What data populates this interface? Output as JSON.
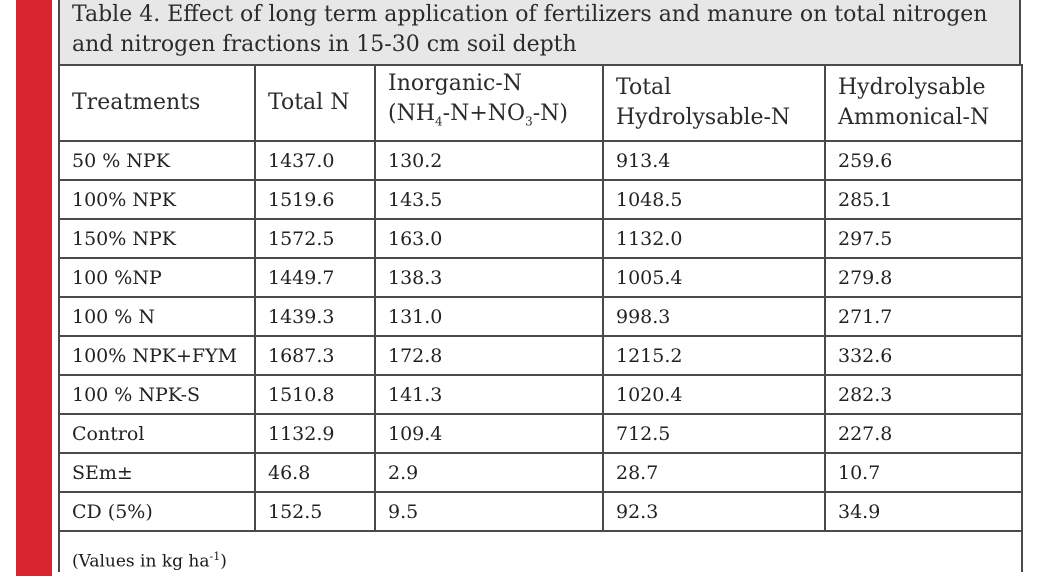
{
  "caption": {
    "line1": "Table 4. Effect of long term application of fertilizers and manure on total nitrogen",
    "line2": "and nitrogen fractions in 15-30 cm soil depth"
  },
  "headers": {
    "treatments": "Treatments",
    "total_n": "Total N",
    "inorganic": {
      "line1": "Inorganic-N",
      "p_open": "(NH",
      "sub1": "4",
      "mid": "-N+NO",
      "sub2": "3",
      "p_close": "-N)"
    },
    "hydrolysable": {
      "line1": "Total",
      "line2": "Hydrolysable-N"
    },
    "ammonical": {
      "line1": "Hydrolysable",
      "line2": "Ammonical-N"
    }
  },
  "rows": [
    [
      "50 % NPK",
      "1437.0",
      "130.2",
      "913.4",
      "259.6"
    ],
    [
      "100% NPK",
      "1519.6",
      "143.5",
      "1048.5",
      "285.1"
    ],
    [
      "150% NPK",
      "1572.5",
      "163.0",
      "1132.0",
      "297.5"
    ],
    [
      "100 %NP",
      "1449.7",
      "138.3",
      "1005.4",
      "279.8"
    ],
    [
      "100 % N",
      "1439.3",
      "131.0",
      "998.3",
      "271.7"
    ],
    [
      "100% NPK+FYM",
      "1687.3",
      "172.8",
      "1215.2",
      "332.6"
    ],
    [
      "100 % NPK-S",
      "1510.8",
      "141.3",
      "1020.4",
      "282.3"
    ],
    [
      "Control",
      "1132.9",
      "109.4",
      "712.5",
      "227.8"
    ],
    [
      "SEm±",
      "46.8",
      "2.9",
      "28.7",
      "10.7"
    ],
    [
      "CD (5%)",
      "152.5",
      "9.5",
      "92.3",
      "34.9"
    ]
  ],
  "footnote": {
    "text": "(Values in kg ha",
    "sup": "-1",
    "close": ")"
  }
}
